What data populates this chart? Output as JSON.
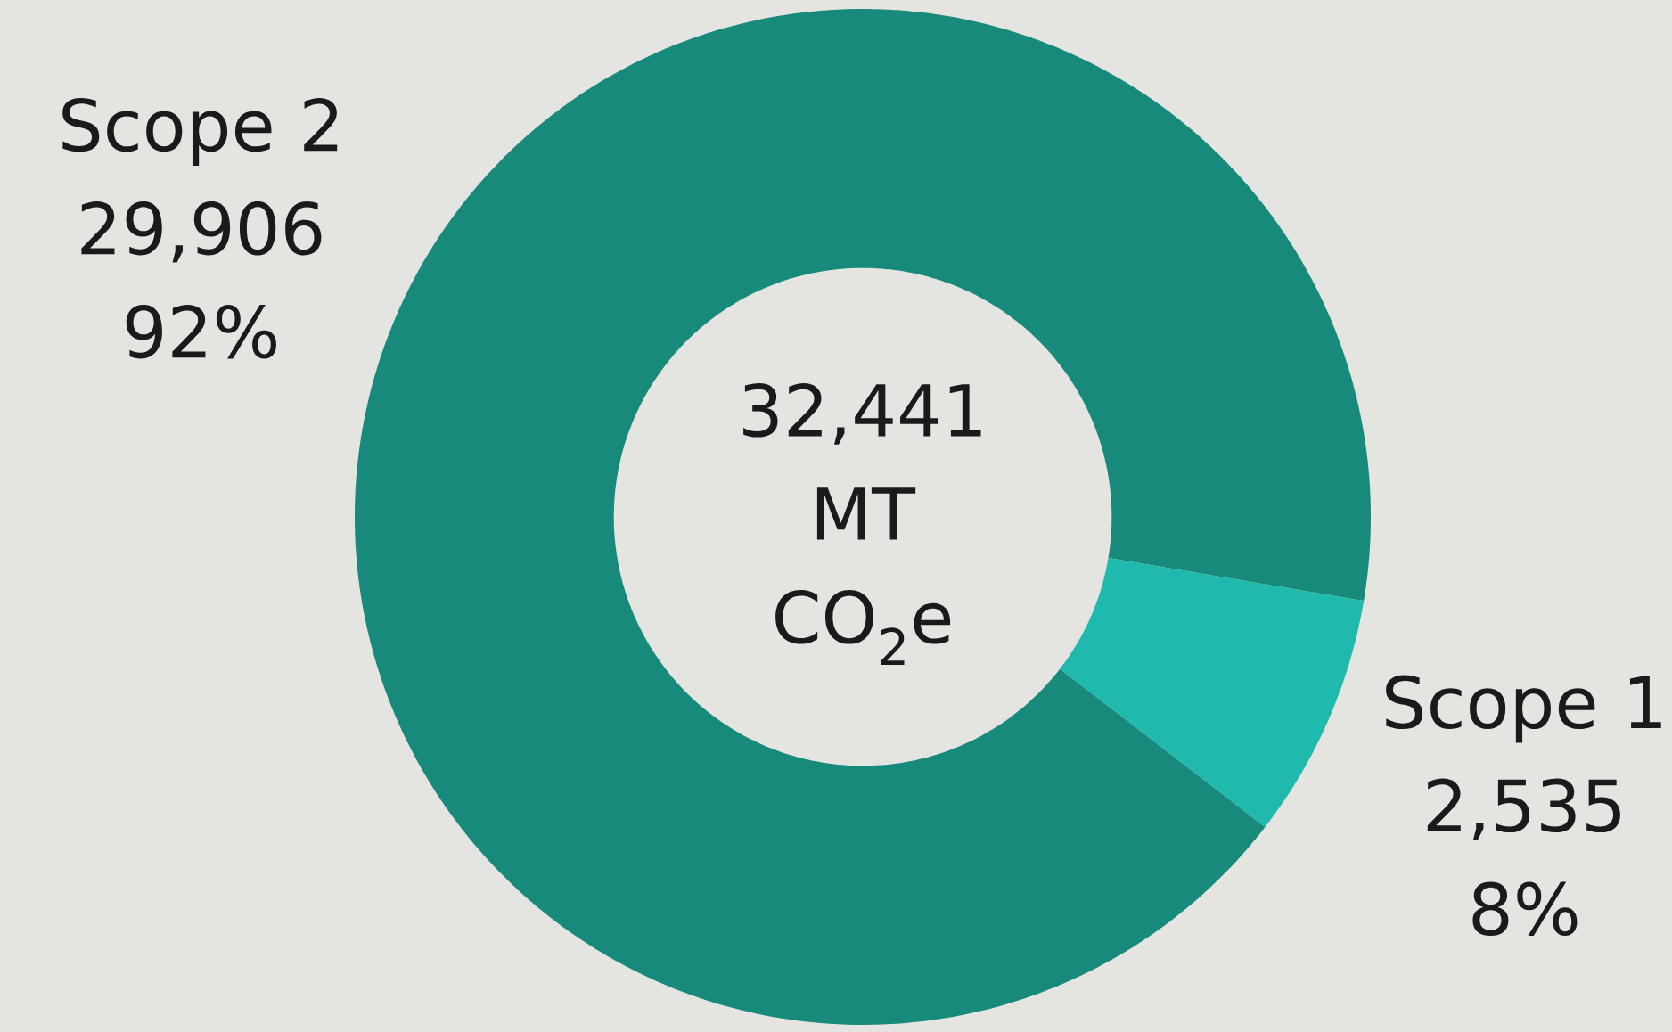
{
  "chart_data": {
    "type": "donut",
    "categories": [
      "Scope 2",
      "Scope 1"
    ],
    "values": [
      29906,
      2535
    ],
    "colors": [
      "#178a7c",
      "#20b9ae"
    ],
    "value_labels": [
      "29,906 92%",
      "2,535 8%"
    ],
    "annotations": [
      "32,441 MT CO$_{2}$e"
    ]
  }
}
